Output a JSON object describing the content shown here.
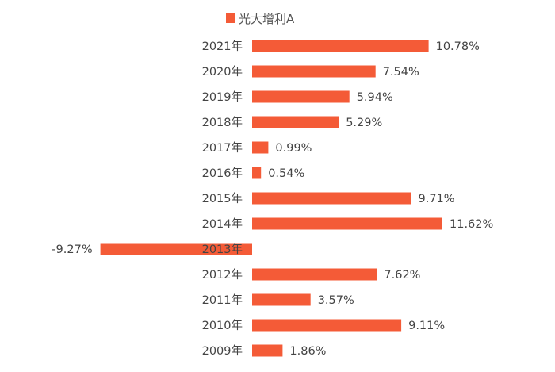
{
  "chart_data": {
    "type": "bar",
    "orientation": "horizontal",
    "categories": [
      "2021年",
      "2020年",
      "2019年",
      "2018年",
      "2017年",
      "2016年",
      "2015年",
      "2014年",
      "2013年",
      "2012年",
      "2011年",
      "2010年",
      "2009年"
    ],
    "series": [
      {
        "name": "光大增利A",
        "values": [
          10.78,
          7.54,
          5.94,
          5.29,
          0.99,
          0.54,
          9.71,
          11.62,
          -9.27,
          7.62,
          3.57,
          9.11,
          1.86
        ],
        "labels": [
          "10.78%",
          "7.54%",
          "5.94%",
          "5.29%",
          "0.99%",
          "0.54%",
          "9.71%",
          "11.62%",
          "-9.27%",
          "7.62%",
          "3.57%",
          "9.11%",
          "1.86%"
        ]
      }
    ],
    "xlim": [
      -9.27,
      11.62
    ],
    "grid": false,
    "legend": "top",
    "color": "#F45B37"
  }
}
